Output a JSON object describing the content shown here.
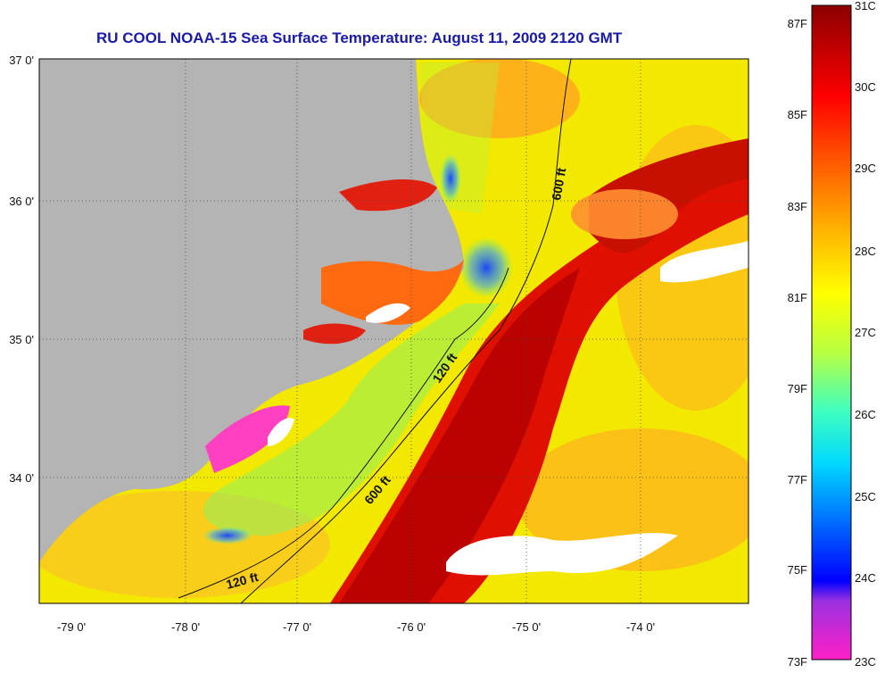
{
  "title": "RU COOL  NOAA-15  Sea Surface Temperature:  August 11, 2009 2120 GMT",
  "map": {
    "latitude_labels": [
      "37 0'",
      "36 0'",
      "35 0'",
      "34 0'"
    ],
    "longitude_labels": [
      "-79 0'",
      "-78 0'",
      "-77 0'",
      "-76 0'",
      "-75 0'",
      "-74 0'"
    ],
    "contour_labels": [
      "600 ft",
      "120 ft",
      "600 ft",
      "120 ft"
    ],
    "land_color": "#b4b4b4",
    "cloud_color": "#ffffff"
  },
  "colorbar": {
    "fahrenheit_labels": [
      "87F",
      "85F",
      "83F",
      "81F",
      "79F",
      "77F",
      "75F",
      "73F"
    ],
    "celsius_labels": [
      "31C",
      "30C",
      "29C",
      "28C",
      "27C",
      "26C",
      "25C",
      "24C",
      "23C"
    ],
    "colors": [
      "#ff20c8",
      "#8a2be2",
      "#0000ff",
      "#00aaff",
      "#00ffff",
      "#80ff80",
      "#ffff00",
      "#ffa500",
      "#ff4000",
      "#ff0000",
      "#a00000",
      "#8b0000"
    ]
  }
}
